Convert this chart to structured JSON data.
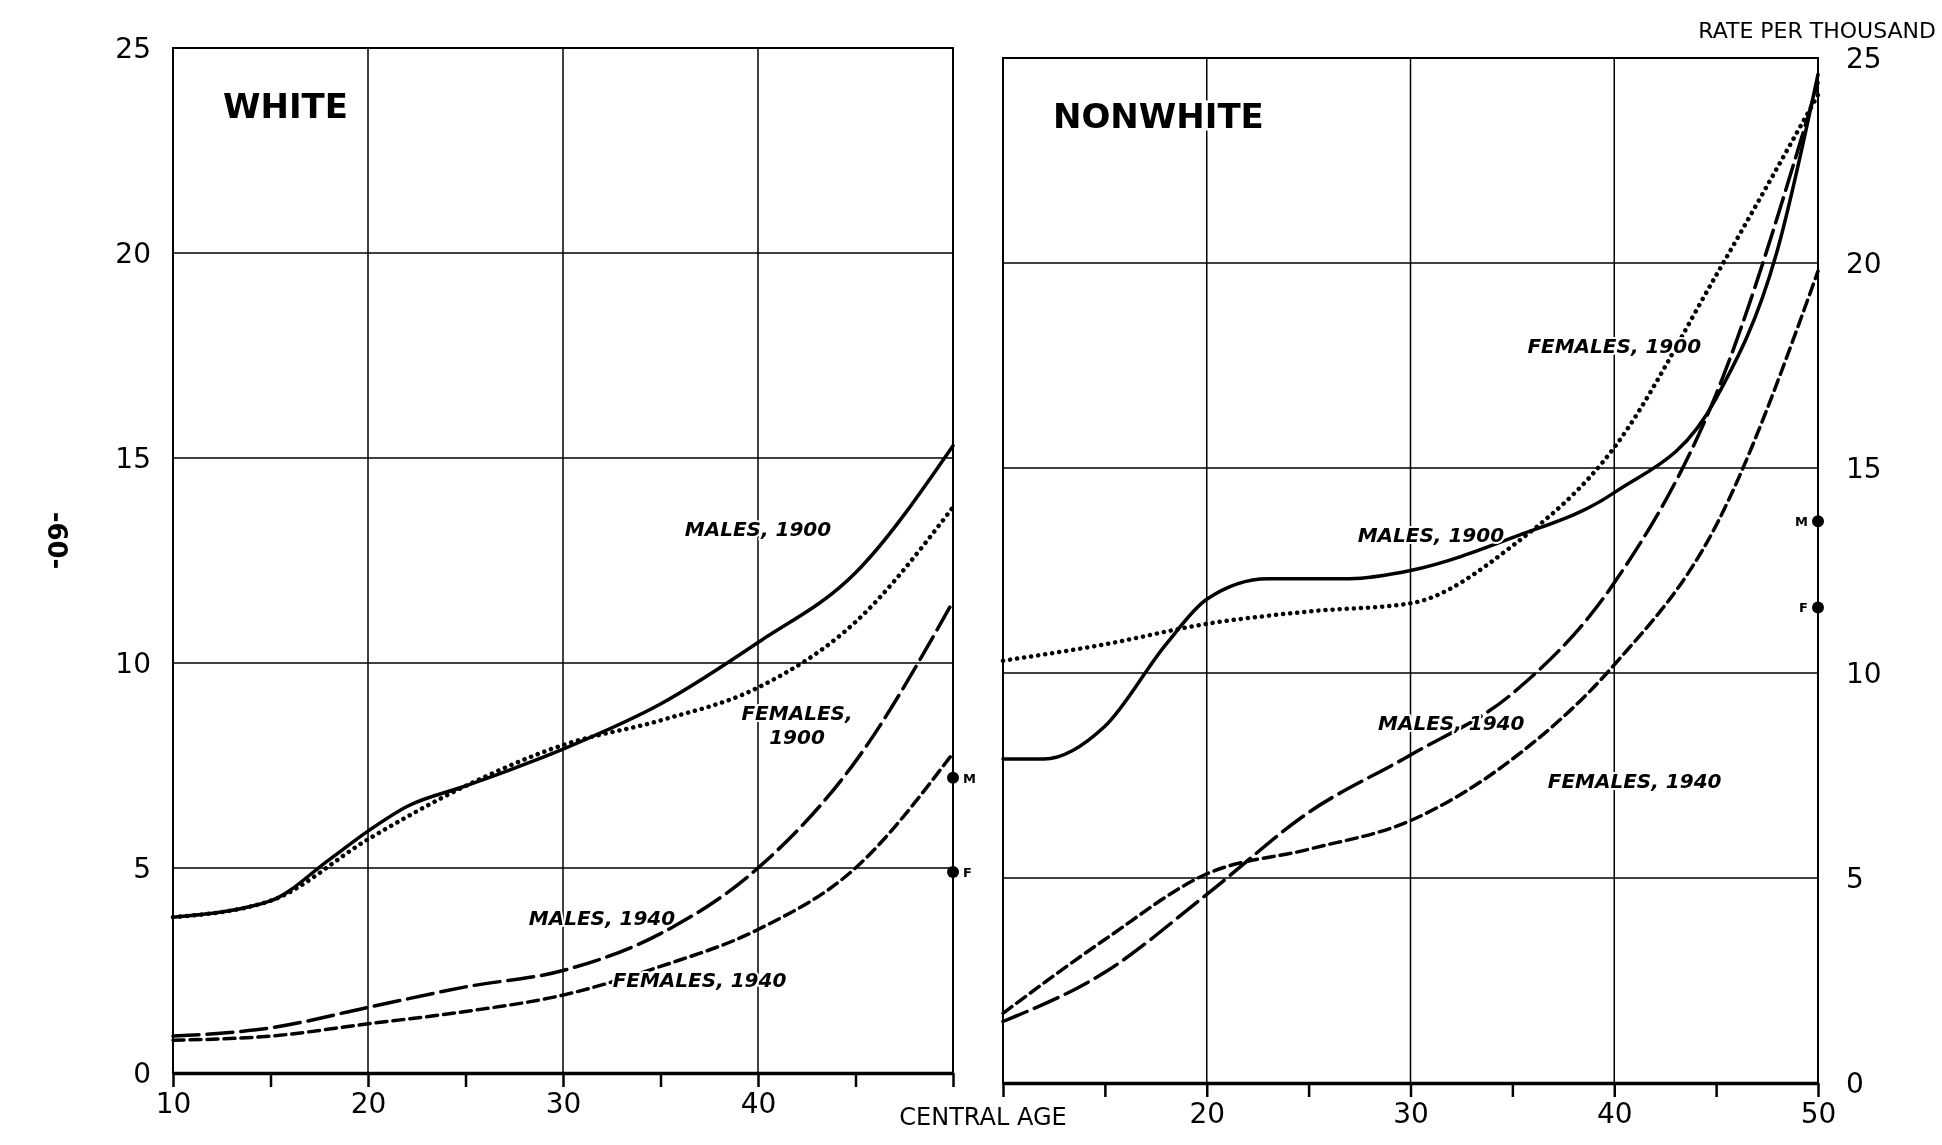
{
  "chart_data": [
    {
      "type": "line",
      "title": "WHITE",
      "annotations": [
        "-60-"
      ],
      "xlim": [
        10,
        50
      ],
      "xticks": [
        10,
        {
          "value": 15,
          "label": null
        },
        20,
        {
          "value": 25,
          "label": null
        },
        30,
        {
          "value": 35,
          "label": null
        },
        40,
        {
          "value": 45,
          "label": null
        },
        {
          "value": 50,
          "label": null
        }
      ],
      "ylim": [
        0,
        25
      ],
      "yticks": [
        0,
        5,
        10,
        15,
        20,
        25
      ],
      "grid": true,
      "series": [
        {
          "name": "MALES, 1900",
          "color": "#000000",
          "line_style": "solid",
          "x": [
            10,
            15,
            18,
            20,
            22,
            25,
            30,
            35,
            40,
            45,
            50
          ],
          "values": [
            3.8,
            4.2,
            5.2,
            5.9,
            6.5,
            7.0,
            7.9,
            9.0,
            10.5,
            12.2,
            15.3
          ]
        },
        {
          "name": "FEMALES, 1900",
          "color": "#000000",
          "line_style": "dotted",
          "x": [
            10,
            15,
            20,
            25,
            30,
            35,
            40,
            45,
            50
          ],
          "values": [
            3.8,
            4.2,
            5.7,
            7.0,
            8.0,
            8.6,
            9.4,
            11.0,
            13.8
          ]
        },
        {
          "name": "MALES, 1940",
          "color": "#000000",
          "line_style": "dashed",
          "x": [
            10,
            15,
            20,
            25,
            30,
            35,
            40,
            45,
            50
          ],
          "values": [
            0.9,
            1.1,
            1.6,
            2.1,
            2.5,
            3.4,
            5.0,
            7.6,
            11.5
          ]
        },
        {
          "name": "FEMALES, 1940",
          "color": "#000000",
          "line_style": "dashed",
          "x": [
            10,
            15,
            20,
            25,
            30,
            35,
            40,
            45,
            50
          ],
          "values": [
            0.8,
            0.9,
            1.2,
            1.5,
            1.9,
            2.6,
            3.5,
            5.0,
            7.8
          ]
        },
        {
          "type": "scatter",
          "name": "M",
          "color": "#000000",
          "marker": "circle",
          "x": [
            50
          ],
          "values": [
            7.2
          ]
        },
        {
          "type": "scatter",
          "name": "F",
          "color": "#000000",
          "marker": "circle",
          "x": [
            50
          ],
          "values": [
            4.9
          ]
        }
      ]
    },
    {
      "type": "line",
      "title": "NONWHITE",
      "xlabel": "CENTRAL AGE",
      "ylabel": "RATE PER THOUSAND",
      "xlim": [
        10,
        50
      ],
      "xticks": [
        {
          "value": 10,
          "label": null
        },
        {
          "value": 15,
          "label": null
        },
        20,
        {
          "value": 25,
          "label": null
        },
        30,
        {
          "value": 35,
          "label": null
        },
        40,
        {
          "value": 45,
          "label": null
        },
        50
      ],
      "ylim": [
        0,
        25
      ],
      "yticks": [
        0,
        5,
        10,
        15,
        20,
        25
      ],
      "grid": true,
      "series": [
        {
          "name": "MALES, 1900",
          "color": "#000000",
          "line_style": "solid",
          "x": [
            10,
            12,
            15,
            18,
            20,
            23,
            27,
            30,
            35,
            40,
            45,
            48,
            50
          ],
          "values": [
            7.9,
            7.9,
            8.7,
            10.7,
            11.8,
            12.3,
            12.3,
            12.5,
            13.3,
            14.4,
            16.7,
            20.3,
            24.6
          ]
        },
        {
          "name": "FEMALES, 1900",
          "color": "#000000",
          "line_style": "dotted",
          "x": [
            10,
            15,
            20,
            25,
            30,
            35,
            40,
            45,
            50
          ],
          "values": [
            10.3,
            10.7,
            11.2,
            11.5,
            11.7,
            13.1,
            15.5,
            19.7,
            24.1
          ]
        },
        {
          "name": "MALES, 1940",
          "color": "#000000",
          "line_style": "dashed",
          "x": [
            10,
            15,
            20,
            25,
            30,
            35,
            40,
            45,
            50
          ],
          "values": [
            1.5,
            2.7,
            4.6,
            6.6,
            8.0,
            9.5,
            12.2,
            16.8,
            24.4
          ]
        },
        {
          "name": "FEMALES, 1940",
          "color": "#000000",
          "line_style": "dashed",
          "x": [
            10,
            15,
            20,
            25,
            30,
            35,
            40,
            45,
            50
          ],
          "values": [
            1.7,
            3.5,
            5.1,
            5.7,
            6.4,
            7.9,
            10.2,
            13.6,
            19.8
          ]
        },
        {
          "type": "scatter",
          "name": "M",
          "color": "#000000",
          "marker": "circle",
          "x": [
            50
          ],
          "values": [
            13.7
          ]
        },
        {
          "type": "scatter",
          "name": "F",
          "color": "#000000",
          "marker": "circle",
          "x": [
            50
          ],
          "values": [
            11.6
          ]
        }
      ]
    }
  ]
}
